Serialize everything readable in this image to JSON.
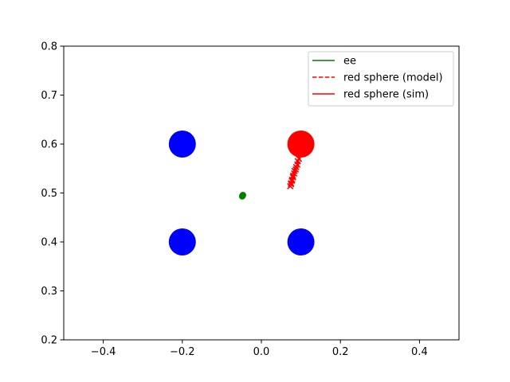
{
  "chart_data": {
    "type": "scatter",
    "title": "",
    "xlabel": "",
    "ylabel": "",
    "xlim": [
      -0.5,
      0.5
    ],
    "ylim": [
      0.2,
      0.8
    ],
    "xticks": [
      -0.4,
      -0.2,
      0.0,
      0.2,
      0.4
    ],
    "xtick_labels": [
      "−0.4",
      "−0.2",
      "0.0",
      "0.2",
      "0.4"
    ],
    "yticks": [
      0.2,
      0.3,
      0.4,
      0.5,
      0.6,
      0.7,
      0.8
    ],
    "ytick_labels": [
      "0.2",
      "0.3",
      "0.4",
      "0.5",
      "0.6",
      "0.7",
      "0.8"
    ],
    "grid": false,
    "legend_position": "top-right",
    "spheres": [
      {
        "color": "#0000ff",
        "x": -0.2,
        "y": 0.6
      },
      {
        "color": "#0000ff",
        "x": -0.2,
        "y": 0.4
      },
      {
        "color": "#0000ff",
        "x": 0.1,
        "y": 0.4
      },
      {
        "color": "#ff0000",
        "x": 0.1,
        "y": 0.6
      }
    ],
    "series": [
      {
        "name": "ee",
        "color": "#008000",
        "style": "solid",
        "x": [
          -0.0485,
          -0.0482,
          -0.0478,
          -0.0475,
          -0.0472,
          -0.047,
          -0.0468,
          -0.0466
        ],
        "y": [
          0.493,
          0.4938,
          0.4943,
          0.4947,
          0.495,
          0.4953,
          0.4955,
          0.4957
        ]
      },
      {
        "name": "red sphere (model)",
        "color": "#ff0000",
        "style": "dashed",
        "x": [
          0.097,
          0.092,
          0.088,
          0.084,
          0.08,
          0.078,
          0.075,
          0.073
        ],
        "y": [
          0.58,
          0.565,
          0.553,
          0.545,
          0.535,
          0.527,
          0.52,
          0.514
        ]
      },
      {
        "name": "red sphere (sim)",
        "color": "#ff0000",
        "style": "solid",
        "x": [
          0.099,
          0.095,
          0.091,
          0.087,
          0.083,
          0.08,
          0.077,
          0.075
        ],
        "y": [
          0.585,
          0.57,
          0.558,
          0.548,
          0.54,
          0.532,
          0.525,
          0.518
        ]
      }
    ]
  }
}
